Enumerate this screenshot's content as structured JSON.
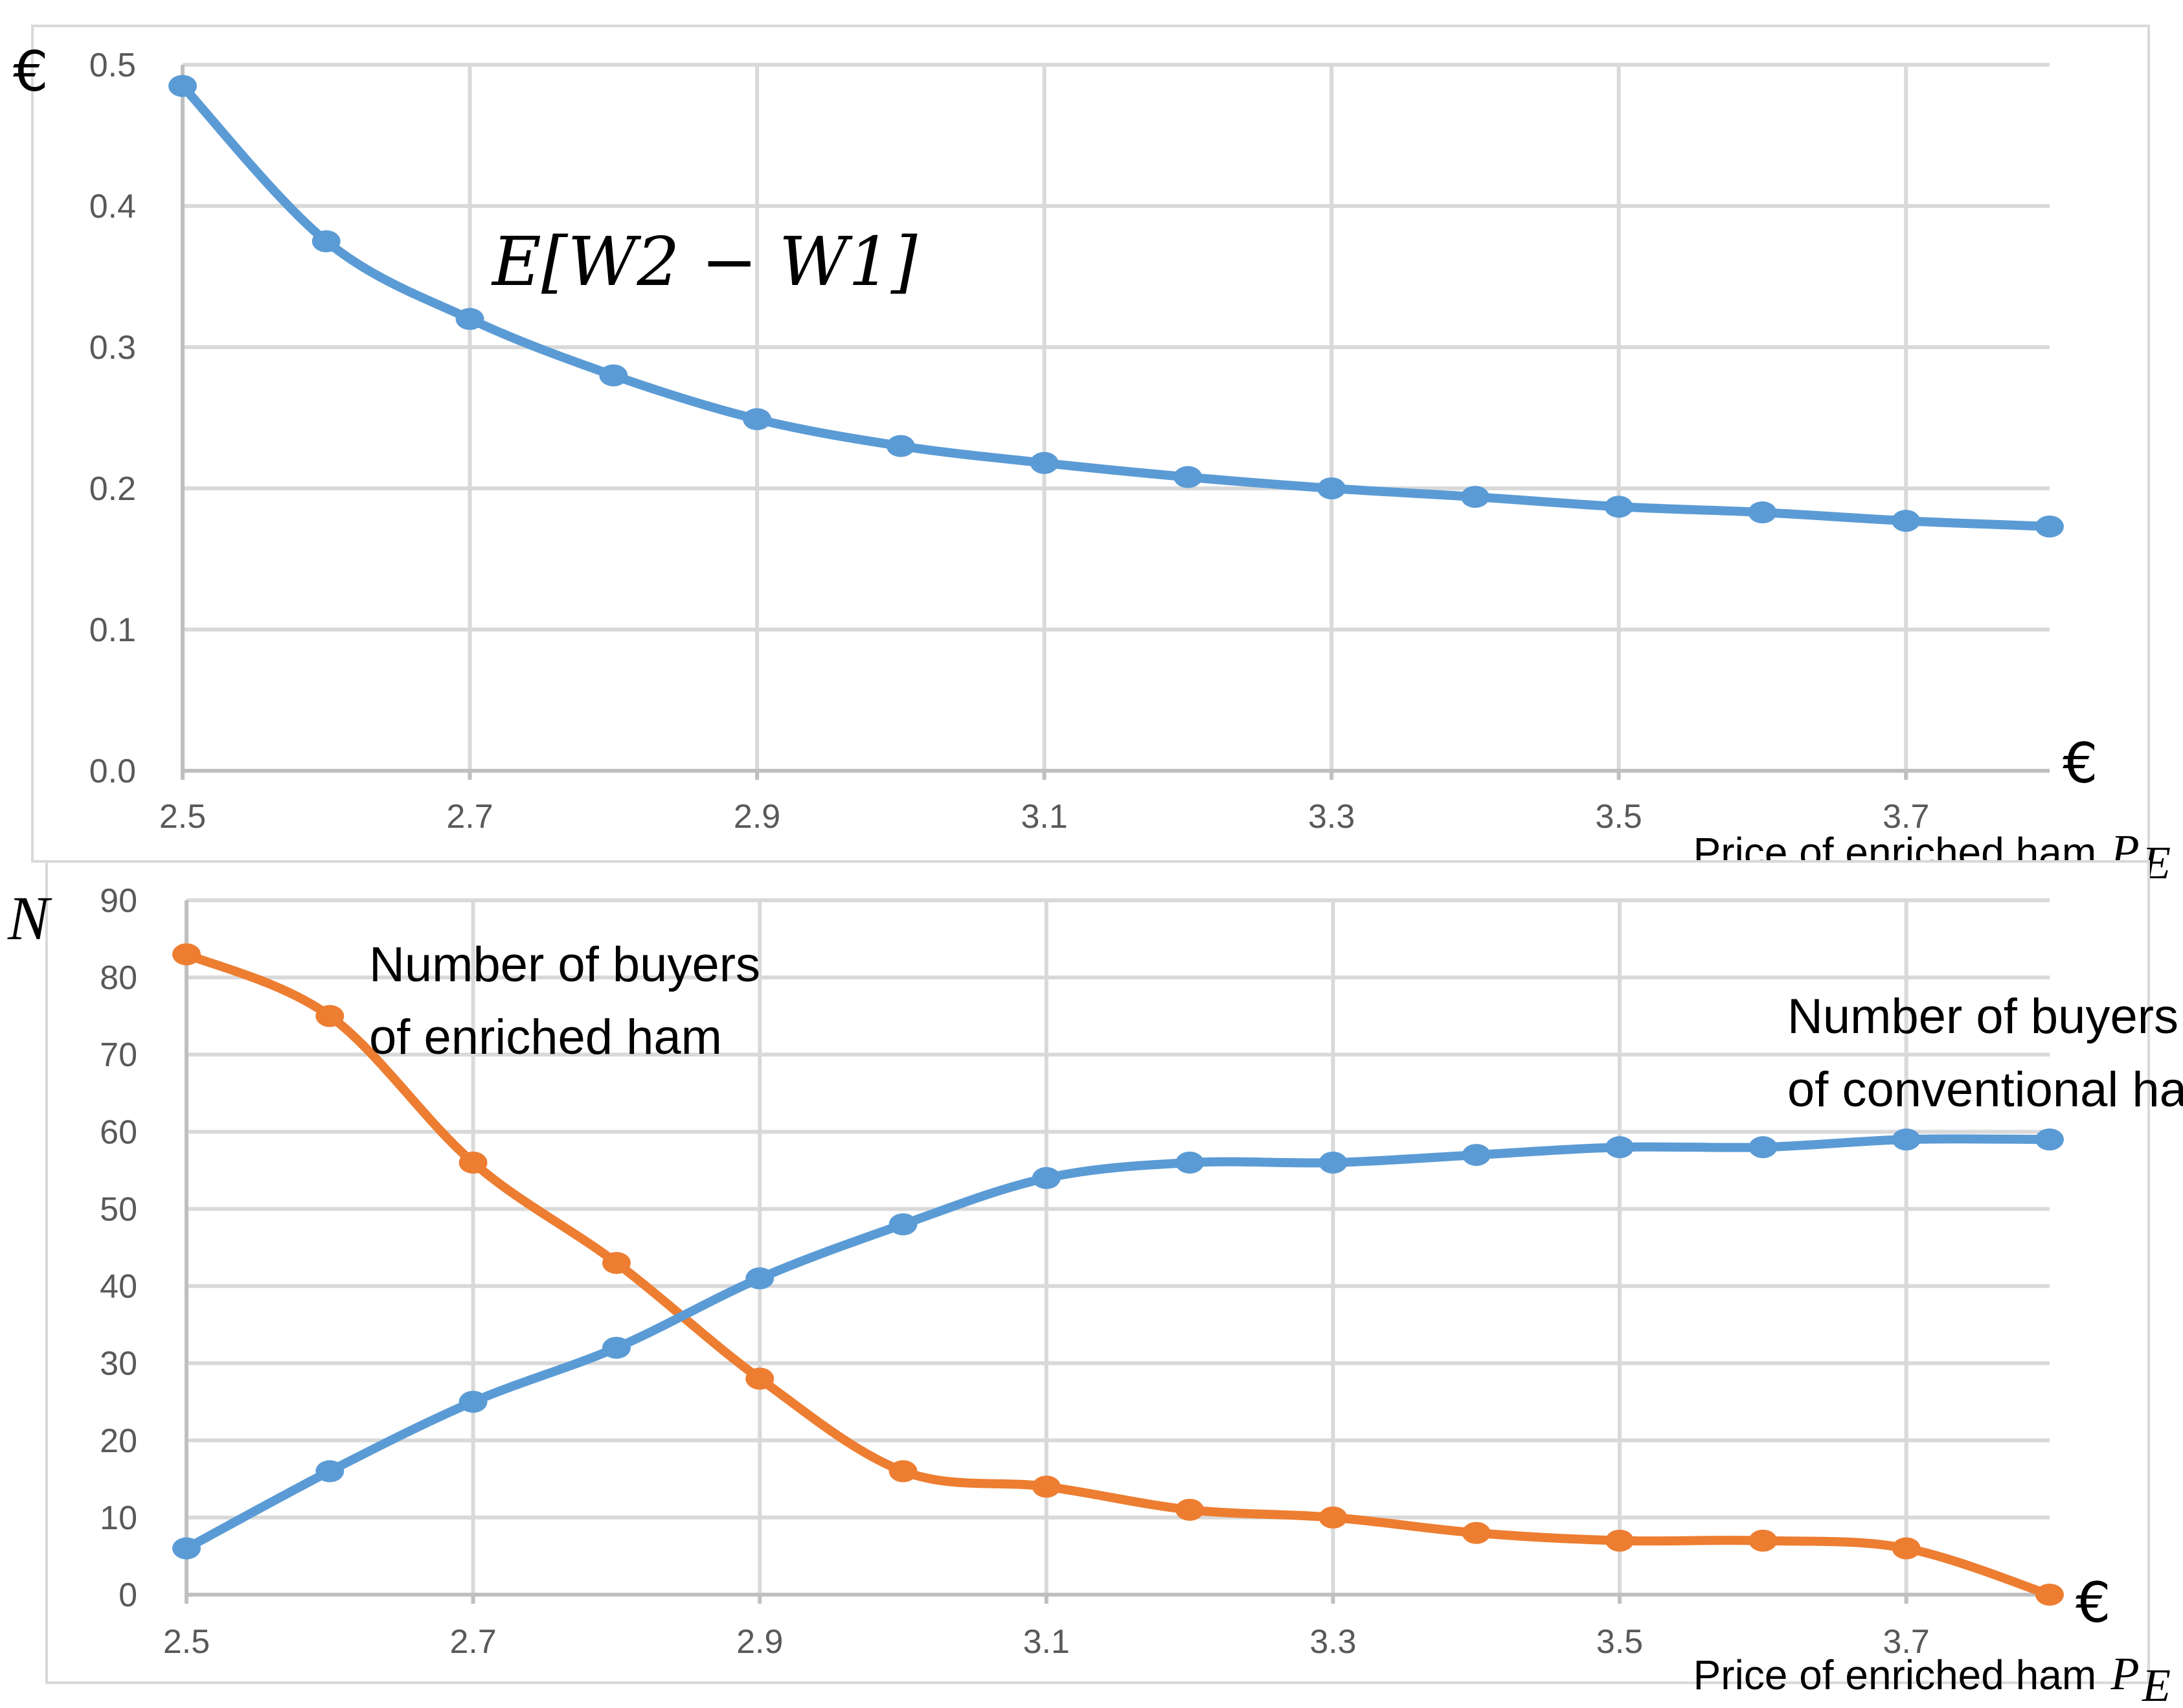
{
  "figure": {
    "colors": {
      "blue": "#5b9bd5",
      "orange": "#ed7d31",
      "grid": "#d9d9d9",
      "tick_text": "#595959"
    }
  },
  "chart_data": [
    {
      "type": "line",
      "title": "",
      "formula_label": "E[W2 − W1]",
      "ylabel": "€",
      "x_unit": "€",
      "xlabel_text": "Price of enriched ham",
      "xlabel_symbol": "P",
      "xlabel_subscript": "E",
      "x": [
        2.5,
        2.6,
        2.7,
        2.8,
        2.9,
        3.0,
        3.1,
        3.2,
        3.3,
        3.4,
        3.5,
        3.6,
        3.7,
        3.8
      ],
      "xlim": [
        2.5,
        3.8
      ],
      "ylim": [
        0.0,
        0.5
      ],
      "xticks": [
        "2.5",
        "2.7",
        "2.9",
        "3.1",
        "3.3",
        "3.5",
        "3.7"
      ],
      "yticks": [
        "0.0",
        "0.1",
        "0.2",
        "0.3",
        "0.4",
        "0.5"
      ],
      "grid": true,
      "series": [
        {
          "name": "E[W2 − W1]",
          "color": "#5b9bd5",
          "values": [
            0.485,
            0.375,
            0.32,
            0.28,
            0.249,
            0.23,
            0.218,
            0.208,
            0.2,
            0.194,
            0.187,
            0.183,
            0.177,
            0.173
          ]
        }
      ]
    },
    {
      "type": "line",
      "title": "",
      "ylabel": "N",
      "x_unit": "€",
      "xlabel_text": "Price of enriched ham",
      "xlabel_symbol": "P",
      "xlabel_subscript": "E",
      "x": [
        2.5,
        2.6,
        2.7,
        2.8,
        2.9,
        3.0,
        3.1,
        3.2,
        3.3,
        3.4,
        3.5,
        3.6,
        3.7,
        3.8
      ],
      "xlim": [
        2.5,
        3.8
      ],
      "ylim": [
        0,
        90
      ],
      "xticks": [
        "2.5",
        "2.7",
        "2.9",
        "3.1",
        "3.3",
        "3.5",
        "3.7"
      ],
      "yticks": [
        "0",
        "10",
        "20",
        "30",
        "40",
        "50",
        "60",
        "70",
        "80",
        "90"
      ],
      "grid": true,
      "annotations": {
        "enriched_line1": "Number of buyers",
        "enriched_line2": "of enriched ham",
        "conventional_line1": "Number of buyers",
        "conventional_line2": "of conventional ham"
      },
      "series": [
        {
          "name": "Number of buyers of enriched ham",
          "color": "#ed7d31",
          "values": [
            83,
            75,
            56,
            43,
            28,
            16,
            14,
            11,
            10,
            8,
            7,
            7,
            6,
            0
          ]
        },
        {
          "name": "Number of buyers of conventional ham",
          "color": "#5b9bd5",
          "values": [
            6,
            16,
            25,
            32,
            41,
            48,
            54,
            56,
            56,
            57,
            58,
            58,
            59,
            59
          ]
        }
      ]
    }
  ]
}
